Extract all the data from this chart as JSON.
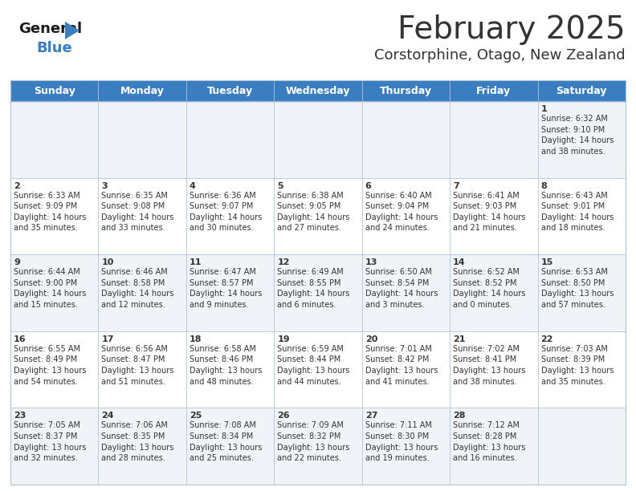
{
  "title": "February 2025",
  "subtitle": "Corstorphine, Otago, New Zealand",
  "header_color": "#3a7ebf",
  "header_text_color": "#ffffff",
  "background_color": "#ffffff",
  "alt_row_color": "#f0f4f8",
  "grid_color": "#b0c4d8",
  "text_color": "#333333",
  "days_of_week": [
    "Sunday",
    "Monday",
    "Tuesday",
    "Wednesday",
    "Thursday",
    "Friday",
    "Saturday"
  ],
  "weeks": [
    [
      {
        "day": "",
        "info": ""
      },
      {
        "day": "",
        "info": ""
      },
      {
        "day": "",
        "info": ""
      },
      {
        "day": "",
        "info": ""
      },
      {
        "day": "",
        "info": ""
      },
      {
        "day": "",
        "info": ""
      },
      {
        "day": "1",
        "info": "Sunrise: 6:32 AM\nSunset: 9:10 PM\nDaylight: 14 hours\nand 38 minutes."
      }
    ],
    [
      {
        "day": "2",
        "info": "Sunrise: 6:33 AM\nSunset: 9:09 PM\nDaylight: 14 hours\nand 35 minutes."
      },
      {
        "day": "3",
        "info": "Sunrise: 6:35 AM\nSunset: 9:08 PM\nDaylight: 14 hours\nand 33 minutes."
      },
      {
        "day": "4",
        "info": "Sunrise: 6:36 AM\nSunset: 9:07 PM\nDaylight: 14 hours\nand 30 minutes."
      },
      {
        "day": "5",
        "info": "Sunrise: 6:38 AM\nSunset: 9:05 PM\nDaylight: 14 hours\nand 27 minutes."
      },
      {
        "day": "6",
        "info": "Sunrise: 6:40 AM\nSunset: 9:04 PM\nDaylight: 14 hours\nand 24 minutes."
      },
      {
        "day": "7",
        "info": "Sunrise: 6:41 AM\nSunset: 9:03 PM\nDaylight: 14 hours\nand 21 minutes."
      },
      {
        "day": "8",
        "info": "Sunrise: 6:43 AM\nSunset: 9:01 PM\nDaylight: 14 hours\nand 18 minutes."
      }
    ],
    [
      {
        "day": "9",
        "info": "Sunrise: 6:44 AM\nSunset: 9:00 PM\nDaylight: 14 hours\nand 15 minutes."
      },
      {
        "day": "10",
        "info": "Sunrise: 6:46 AM\nSunset: 8:58 PM\nDaylight: 14 hours\nand 12 minutes."
      },
      {
        "day": "11",
        "info": "Sunrise: 6:47 AM\nSunset: 8:57 PM\nDaylight: 14 hours\nand 9 minutes."
      },
      {
        "day": "12",
        "info": "Sunrise: 6:49 AM\nSunset: 8:55 PM\nDaylight: 14 hours\nand 6 minutes."
      },
      {
        "day": "13",
        "info": "Sunrise: 6:50 AM\nSunset: 8:54 PM\nDaylight: 14 hours\nand 3 minutes."
      },
      {
        "day": "14",
        "info": "Sunrise: 6:52 AM\nSunset: 8:52 PM\nDaylight: 14 hours\nand 0 minutes."
      },
      {
        "day": "15",
        "info": "Sunrise: 6:53 AM\nSunset: 8:50 PM\nDaylight: 13 hours\nand 57 minutes."
      }
    ],
    [
      {
        "day": "16",
        "info": "Sunrise: 6:55 AM\nSunset: 8:49 PM\nDaylight: 13 hours\nand 54 minutes."
      },
      {
        "day": "17",
        "info": "Sunrise: 6:56 AM\nSunset: 8:47 PM\nDaylight: 13 hours\nand 51 minutes."
      },
      {
        "day": "18",
        "info": "Sunrise: 6:58 AM\nSunset: 8:46 PM\nDaylight: 13 hours\nand 48 minutes."
      },
      {
        "day": "19",
        "info": "Sunrise: 6:59 AM\nSunset: 8:44 PM\nDaylight: 13 hours\nand 44 minutes."
      },
      {
        "day": "20",
        "info": "Sunrise: 7:01 AM\nSunset: 8:42 PM\nDaylight: 13 hours\nand 41 minutes."
      },
      {
        "day": "21",
        "info": "Sunrise: 7:02 AM\nSunset: 8:41 PM\nDaylight: 13 hours\nand 38 minutes."
      },
      {
        "day": "22",
        "info": "Sunrise: 7:03 AM\nSunset: 8:39 PM\nDaylight: 13 hours\nand 35 minutes."
      }
    ],
    [
      {
        "day": "23",
        "info": "Sunrise: 7:05 AM\nSunset: 8:37 PM\nDaylight: 13 hours\nand 32 minutes."
      },
      {
        "day": "24",
        "info": "Sunrise: 7:06 AM\nSunset: 8:35 PM\nDaylight: 13 hours\nand 28 minutes."
      },
      {
        "day": "25",
        "info": "Sunrise: 7:08 AM\nSunset: 8:34 PM\nDaylight: 13 hours\nand 25 minutes."
      },
      {
        "day": "26",
        "info": "Sunrise: 7:09 AM\nSunset: 8:32 PM\nDaylight: 13 hours\nand 22 minutes."
      },
      {
        "day": "27",
        "info": "Sunrise: 7:11 AM\nSunset: 8:30 PM\nDaylight: 13 hours\nand 19 minutes."
      },
      {
        "day": "28",
        "info": "Sunrise: 7:12 AM\nSunset: 8:28 PM\nDaylight: 13 hours\nand 16 minutes."
      },
      {
        "day": "",
        "info": ""
      }
    ]
  ],
  "logo_general_color": "#1a1a1a",
  "logo_blue_color": "#3a7ebf",
  "title_fontsize": 28,
  "subtitle_fontsize": 13,
  "header_fontsize": 9,
  "day_num_fontsize": 8,
  "day_info_fontsize": 7
}
